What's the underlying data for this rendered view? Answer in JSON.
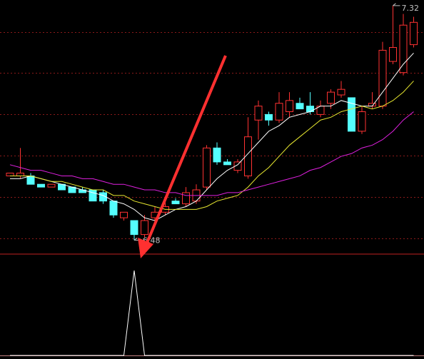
{
  "chart_data": {
    "type": "candlestick",
    "ylim": [
      6.43,
      7.34
    ],
    "gridlines": [
      7.225,
      7.079,
      6.931,
      6.783,
      6.634,
      6.486
    ],
    "up_color": "#ff3232",
    "down_color": "#54ffff",
    "grid_color": "#8b1a1a",
    "open": [
      6.71,
      6.71,
      6.71,
      6.68,
      6.67,
      6.68,
      6.67,
      6.66,
      6.66,
      6.65,
      6.62,
      6.56,
      6.55,
      6.5,
      6.56,
      6.58,
      6.62,
      6.61,
      6.62,
      6.67,
      6.81,
      6.76,
      6.73,
      6.71,
      6.91,
      6.93,
      6.91,
      6.94,
      6.97,
      6.96,
      6.93,
      6.97,
      7.0,
      6.99,
      6.87,
      6.96,
      6.96,
      7.12,
      7.08,
      7.18
    ],
    "high": [
      6.72,
      6.81,
      6.72,
      6.68,
      6.68,
      6.68,
      6.67,
      6.67,
      6.66,
      6.66,
      6.62,
      6.58,
      6.55,
      6.57,
      6.6,
      6.62,
      6.63,
      6.67,
      6.68,
      6.82,
      6.83,
      6.77,
      6.77,
      6.92,
      6.98,
      6.94,
      7.01,
      7.01,
      6.99,
      7.01,
      6.98,
      7.02,
      7.05,
      6.99,
      6.96,
      7.01,
      7.19,
      7.32,
      7.29,
      7.28
    ],
    "low": [
      6.71,
      6.7,
      6.68,
      6.67,
      6.67,
      6.66,
      6.65,
      6.65,
      6.62,
      6.61,
      6.56,
      6.55,
      6.48,
      6.49,
      6.55,
      6.57,
      6.61,
      6.6,
      6.61,
      6.66,
      6.75,
      6.75,
      6.72,
      6.7,
      6.84,
      6.89,
      6.9,
      6.92,
      6.95,
      6.93,
      6.92,
      6.95,
      6.99,
      6.87,
      6.86,
      6.95,
      6.95,
      7.11,
      7.07,
      7.17
    ],
    "close": [
      6.72,
      6.72,
      6.68,
      6.67,
      6.68,
      6.66,
      6.65,
      6.65,
      6.62,
      6.62,
      6.57,
      6.58,
      6.5,
      6.55,
      6.58,
      6.6,
      6.61,
      6.65,
      6.66,
      6.81,
      6.76,
      6.75,
      6.76,
      6.85,
      6.96,
      6.91,
      6.97,
      6.98,
      6.95,
      6.94,
      6.96,
      7.01,
      7.02,
      6.87,
      6.94,
      6.97,
      7.16,
      7.17,
      7.25,
      7.26
    ],
    "lines": [
      {
        "color": "#ffffff",
        "values": [
          6.7,
          6.7,
          6.71,
          6.7,
          6.69,
          6.68,
          6.67,
          6.66,
          6.65,
          6.64,
          6.62,
          6.61,
          6.59,
          6.56,
          6.55,
          6.57,
          6.59,
          6.6,
          6.62,
          6.66,
          6.7,
          6.73,
          6.75,
          6.79,
          6.83,
          6.87,
          6.89,
          6.92,
          6.93,
          6.94,
          6.96,
          6.96,
          6.98,
          6.97,
          6.96,
          6.96,
          7.01,
          7.06,
          7.11,
          7.15
        ]
      },
      {
        "color": "#e8e830",
        "values": [
          6.71,
          6.71,
          6.71,
          6.7,
          6.69,
          6.69,
          6.68,
          6.67,
          6.66,
          6.66,
          6.64,
          6.64,
          6.62,
          6.61,
          6.6,
          6.59,
          6.59,
          6.59,
          6.59,
          6.6,
          6.62,
          6.63,
          6.64,
          6.67,
          6.71,
          6.74,
          6.78,
          6.82,
          6.85,
          6.88,
          6.91,
          6.92,
          6.94,
          6.95,
          6.96,
          6.95,
          6.96,
          6.98,
          7.01,
          7.05
        ]
      },
      {
        "color": "#e020e0",
        "values": [
          6.75,
          6.74,
          6.73,
          6.73,
          6.72,
          6.71,
          6.71,
          6.7,
          6.7,
          6.69,
          6.68,
          6.68,
          6.67,
          6.66,
          6.66,
          6.65,
          6.65,
          6.64,
          6.64,
          6.64,
          6.64,
          6.65,
          6.65,
          6.66,
          6.67,
          6.68,
          6.69,
          6.7,
          6.71,
          6.73,
          6.74,
          6.76,
          6.78,
          6.79,
          6.81,
          6.82,
          6.84,
          6.87,
          6.91,
          6.94
        ]
      }
    ],
    "annotations": [
      "7.32",
      "6.48"
    ],
    "indicator": {
      "color": "#ffffff",
      "ylim": [
        0,
        1.16
      ],
      "values": [
        0,
        0,
        0,
        0,
        0,
        0,
        0,
        0,
        0,
        0,
        0,
        0,
        1,
        0,
        0,
        0,
        0,
        0,
        0,
        0,
        0,
        0,
        0,
        0,
        0,
        0,
        0,
        0,
        0,
        0,
        0,
        0,
        0,
        0,
        0,
        0,
        0,
        0,
        0,
        0
      ]
    }
  }
}
